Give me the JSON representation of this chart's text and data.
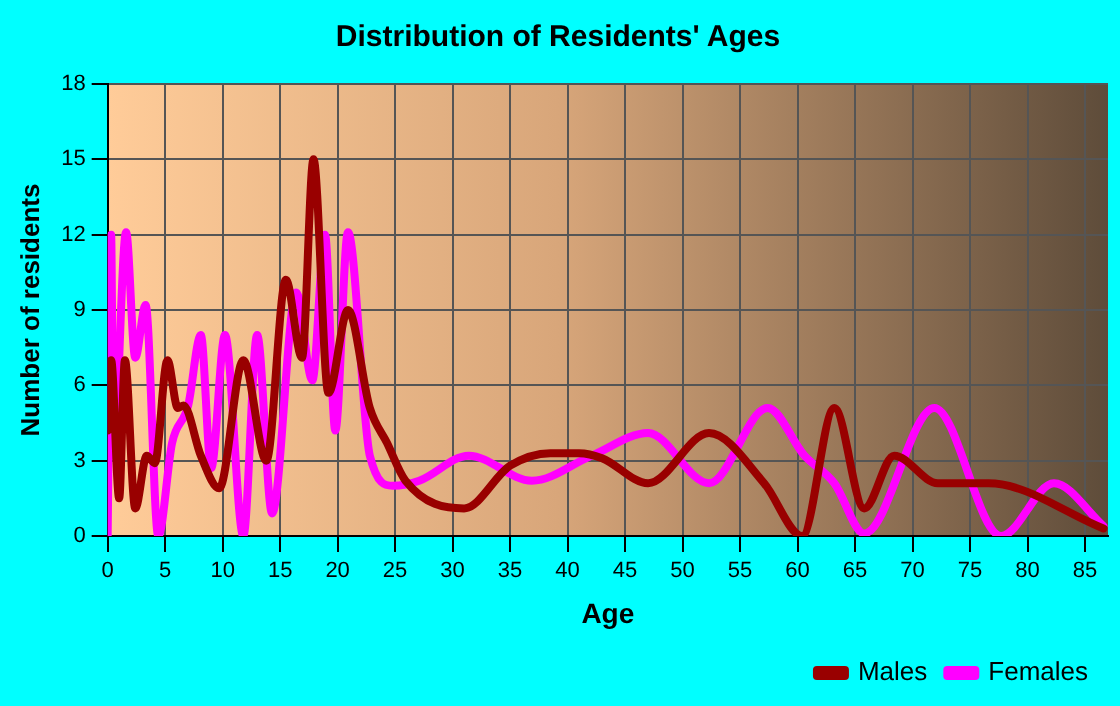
{
  "chart_data": {
    "type": "line",
    "title": "Distribution of Residents' Ages",
    "xlabel": "Age",
    "ylabel": "Number of residents",
    "xlim": [
      0,
      87
    ],
    "xticks": [
      0,
      5,
      10,
      15,
      20,
      25,
      30,
      35,
      40,
      45,
      50,
      55,
      60,
      65,
      70,
      75,
      80,
      85
    ],
    "ylim": [
      0,
      18
    ],
    "yticks": [
      0,
      3,
      6,
      9,
      12,
      15,
      18
    ],
    "grid": true,
    "legend": "bottom right",
    "marker": "none",
    "line_style": "solid",
    "series": [
      {
        "name": "Males",
        "color": "#990000",
        "x": [
          0,
          0.3,
          1,
          1.5,
          2.4,
          3.4,
          4.1,
          5.2,
          6.1,
          6.6,
          8.1,
          9.7,
          11.8,
          13.8,
          15.5,
          16.9,
          17.9,
          19.2,
          20.9,
          22.8,
          24.3,
          25.9,
          31,
          35,
          38.5,
          41,
          43,
          47,
          52.3,
          57.1,
          60.4,
          63.2,
          65.8,
          68.4,
          72.2,
          76.6,
          86.6
        ],
        "values": [
          4.2,
          7,
          1.5,
          7,
          1.1,
          3.2,
          2.9,
          7,
          5.1,
          5.2,
          3.2,
          1.9,
          7,
          3,
          10.2,
          7.1,
          15,
          5.7,
          9,
          5.1,
          3.7,
          2.2,
          1.1,
          2.8,
          3.3,
          3.3,
          3.1,
          2.1,
          4.1,
          2.1,
          0,
          5.1,
          1.1,
          3.2,
          2.1,
          2.1,
          0.3
        ]
      },
      {
        "name": "Females",
        "color": "#ff00ff",
        "x": [
          0,
          0.3,
          0.5,
          1.6,
          2.4,
          3.3,
          4.4,
          5.6,
          7,
          8.1,
          9,
          10.2,
          11.8,
          13,
          14.3,
          16.4,
          17.8,
          18.9,
          19.8,
          20.9,
          22.8,
          24.8,
          27.1,
          31.4,
          36.9,
          42.1,
          47,
          52.3,
          57.4,
          60.6,
          63.2,
          65.8,
          71.9,
          77.7,
          82.3,
          86.6
        ],
        "values": [
          0,
          12,
          3.2,
          12.1,
          7.1,
          9.2,
          0,
          3.7,
          5.2,
          8,
          2.7,
          8,
          0,
          8,
          0.9,
          9.7,
          6.2,
          12,
          4.2,
          12.1,
          3.2,
          2,
          2.2,
          3.2,
          2.2,
          3.2,
          4.1,
          2.1,
          5.1,
          3.2,
          2.1,
          0.1,
          5.1,
          0,
          2.1,
          0.4
        ]
      }
    ]
  }
}
